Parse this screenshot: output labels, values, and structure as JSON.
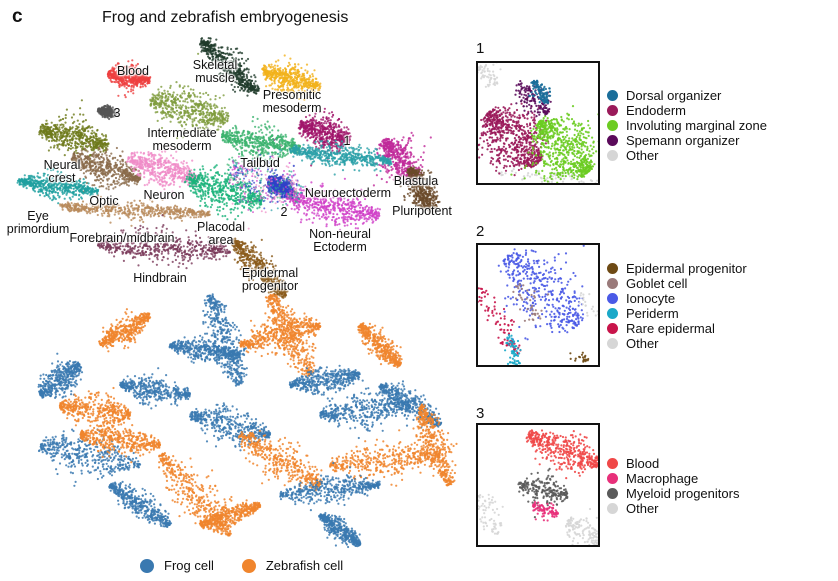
{
  "panel_letter": "c",
  "title": "Frog and zebrafish embryogenesis",
  "chart_data": [
    {
      "type": "scatter",
      "name_in_figure": "cell-type UMAP",
      "clusters": [
        {
          "label": "Blood",
          "color": "#ee4040"
        },
        {
          "label": "Skeletal\nmuscle",
          "color": "#1f3b2a"
        },
        {
          "label": "Presomitic\nmesoderm",
          "color": "#f2b21c"
        },
        {
          "label": "3",
          "color": "#555555"
        },
        {
          "label": "Intermediate\nmesoderm",
          "color": "#7f9c3e"
        },
        {
          "label": "1",
          "color": "#a0156a"
        },
        {
          "label": "Neural\ncrest",
          "color": "#6e7a1c"
        },
        {
          "label": "Tailbud",
          "color": "#3bb36e"
        },
        {
          "label": "Blastula",
          "color": "#c02a9a"
        },
        {
          "label": "Optic",
          "color": "#8a6a4a"
        },
        {
          "label": "Neuron",
          "color": "#f08cc8"
        },
        {
          "label": "Neuroectoderm",
          "color": "#2aa0a8"
        },
        {
          "label": "Eye\nprimordium",
          "color": "#1fa0a0"
        },
        {
          "label": "Placodal\narea",
          "color": "#1ab37a"
        },
        {
          "label": "2",
          "color": "#3040c8"
        },
        {
          "label": "Pluripotent",
          "color": "#6a4a2a"
        },
        {
          "label": "Forebrain/midbrain",
          "color": "#b88a5a"
        },
        {
          "label": "Non-neural\nEctoderm",
          "color": "#d040c8"
        },
        {
          "label": "Hindbrain",
          "color": "#7a3a5a"
        },
        {
          "label": "Epidermal\nprogenitor",
          "color": "#8a5a1a"
        }
      ]
    },
    {
      "type": "scatter",
      "name_in_figure": "species UMAP",
      "series": [
        {
          "name": "Frog cell",
          "color": "#3a79b0"
        },
        {
          "name": "Zebrafish cell",
          "color": "#f0852d"
        }
      ]
    }
  ],
  "insets": [
    {
      "number": "1",
      "legend": [
        {
          "label": "Dorsal organizer",
          "color": "#1a6e9a"
        },
        {
          "label": "Endoderm",
          "color": "#9a1a5a"
        },
        {
          "label": "Involuting marginal zone",
          "color": "#6ccc22"
        },
        {
          "label": "Spemann organizer",
          "color": "#5a0a5a"
        },
        {
          "label": "Other",
          "color": "#d6d6d6"
        }
      ]
    },
    {
      "number": "2",
      "legend": [
        {
          "label": "Epidermal progenitor",
          "color": "#6e4a14"
        },
        {
          "label": "Goblet cell",
          "color": "#9a7a7a"
        },
        {
          "label": "Ionocyte",
          "color": "#4a5ae6"
        },
        {
          "label": "Periderm",
          "color": "#1aa8c8"
        },
        {
          "label": "Rare epidermal",
          "color": "#c8144a"
        },
        {
          "label": "Other",
          "color": "#d6d6d6"
        }
      ]
    },
    {
      "number": "3",
      "legend": [
        {
          "label": "Blood",
          "color": "#f04848"
        },
        {
          "label": "Macrophage",
          "color": "#e8307a"
        },
        {
          "label": "Myeloid progenitors",
          "color": "#5a5a5a"
        },
        {
          "label": "Other",
          "color": "#d6d6d6"
        }
      ]
    }
  ],
  "species_legend": [
    {
      "label": "Frog cell",
      "color": "#3a79b0"
    },
    {
      "label": "Zebrafish cell",
      "color": "#f0852d"
    }
  ]
}
